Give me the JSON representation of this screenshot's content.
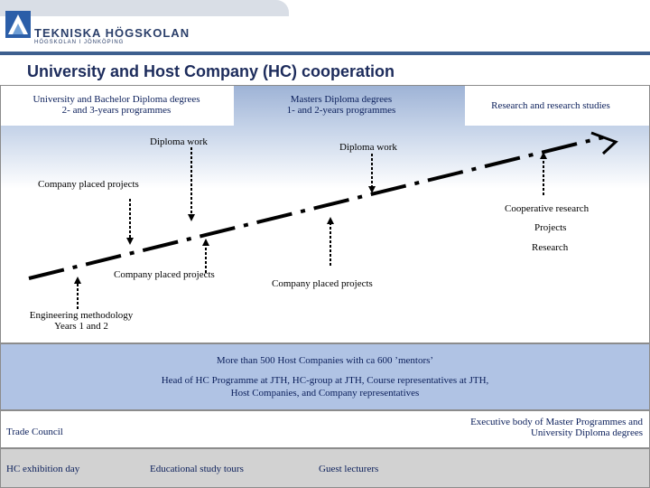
{
  "header": {
    "logo_name": "TEKNISKA HÖGSKOLAN",
    "logo_sub": "HÖGSKOLAN I JÖNKÖPING",
    "title": "University and Host Company (HC) cooperation"
  },
  "columns": [
    {
      "line1": "University and Bachelor Diploma degrees",
      "line2": "2- and 3-years programmes"
    },
    {
      "line1": "Masters Diploma degrees",
      "line2": "1- and 2-years programmes"
    },
    {
      "line1": "Research and research studies"
    }
  ],
  "labels": {
    "diploma_work_1": "Diploma work",
    "diploma_work_2": "Diploma work",
    "company_projects_top": "Company placed projects",
    "cooperative_research": "Cooperative research",
    "projects": "Projects",
    "research": "Research",
    "company_projects_mid": "Company placed projects",
    "company_projects_right": "Company placed projects",
    "eng_method_1": "Engineering methodology",
    "eng_method_2": "Years 1 and 2"
  },
  "bands": {
    "mentors_line1": "More than 500 Host Companies with ca 600 ’mentors’",
    "mentors_line2": "Head of HC Programme at JTH, HC-group at JTH, Course representatives at JTH,",
    "mentors_line3": "Host Companies, and Company representatives",
    "trade_council": "Trade Council",
    "exec_line1": "Executive body of Master Programmes and",
    "exec_line2": "University Diploma degrees",
    "hc_exhibition": "HC exhibition day",
    "study_tours": "Educational study tours",
    "guest_lecturers": "Guest lecturers"
  },
  "colors": {
    "title": "#1d2c5c",
    "rule": "#3d5f8f",
    "mentors_band": "#b0c3e4",
    "exhibit_band": "#d2d2d2"
  }
}
